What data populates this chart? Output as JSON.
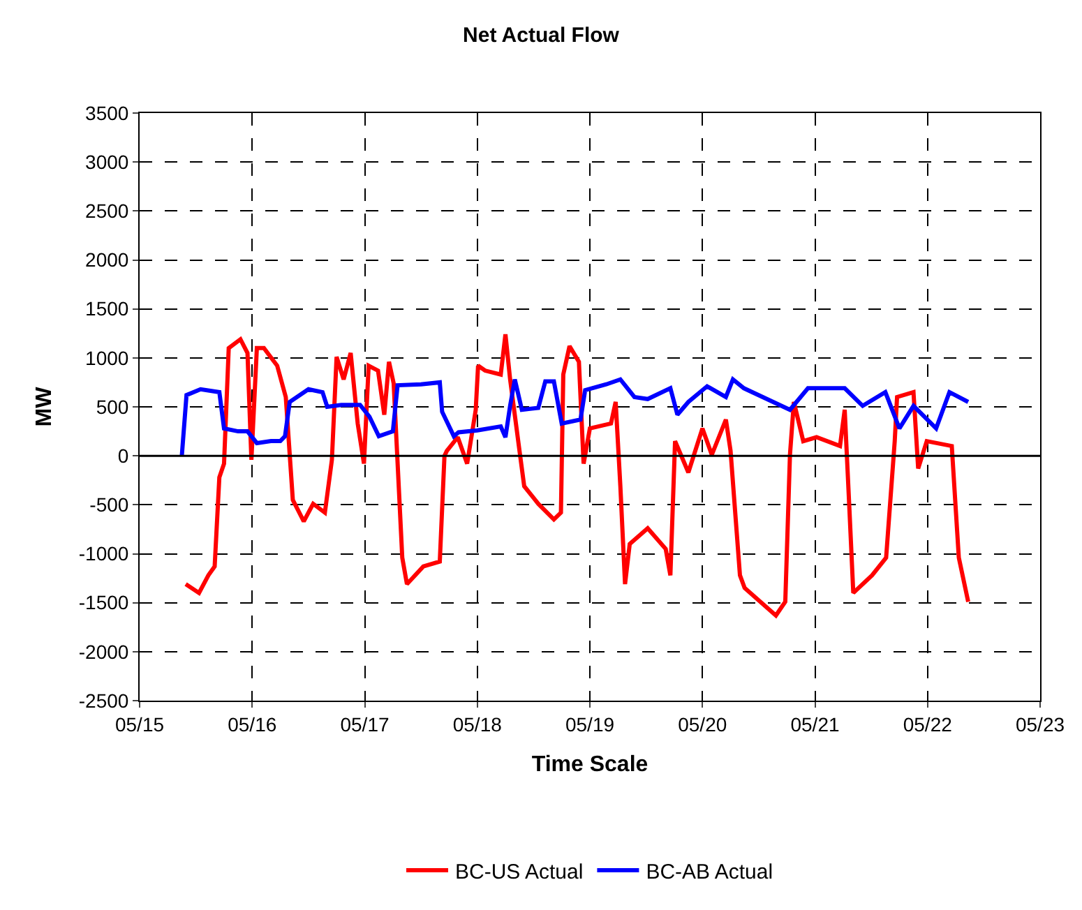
{
  "chart_data": {
    "type": "line",
    "title": "Net Actual Flow",
    "xlabel": "Time Scale",
    "ylabel": "MW",
    "xlim": [
      "--05-15",
      "--05-23"
    ],
    "xticks": [
      {
        "value": "--05-15",
        "label": "05/15"
      },
      {
        "value": "--05-16",
        "label": "05/16"
      },
      {
        "value": "--05-17",
        "label": "05/17"
      },
      {
        "value": "--05-18",
        "label": "05/18"
      },
      {
        "value": "--05-19",
        "label": "05/19"
      },
      {
        "value": "--05-20",
        "label": "05/20"
      },
      {
        "value": "--05-21",
        "label": "05/21"
      },
      {
        "value": "--05-22",
        "label": "05/22"
      },
      {
        "value": "--05-23",
        "label": "05/23"
      }
    ],
    "ylim": [
      -2500,
      3500
    ],
    "yticks": [
      -2500,
      -2000,
      -1500,
      -1000,
      -500,
      0,
      500,
      1000,
      1500,
      2000,
      2500,
      3000,
      3500
    ],
    "grid": true,
    "legend": "bottom",
    "marker": "none",
    "line_style": "solid",
    "ref_lines": [
      {
        "axis": "y",
        "value": 0,
        "color": "#000000",
        "line_style": "solid"
      }
    ],
    "series": [
      {
        "name": "BC-US Actual",
        "color": "#ff0000",
        "x": [
          "--05-15T09:50",
          "--05-15T12:40",
          "--05-15T14:40",
          "--05-15T16:00",
          "--05-15T17:00",
          "--05-15T18:00",
          "--05-15T19:00",
          "--05-15T21:30",
          "--05-15T23:00",
          "--05-15T23:50",
          "--05-16T01:00",
          "--05-16T02:30",
          "--05-16T05:20",
          "--05-16T07:10",
          "--05-16T08:40",
          "--05-16T11:00",
          "--05-16T13:00",
          "--05-16T15:30",
          "--05-16T17:00",
          "--05-16T18:00",
          "--05-16T19:30",
          "--05-16T21:00",
          "--05-16T22:30",
          "--05-16T23:50",
          "--05-17T00:50",
          "--05-17T02:50",
          "--05-17T04:10",
          "--05-17T05:10",
          "--05-17T06:10",
          "--05-17T08:00",
          "--05-17T09:00",
          "--05-17T12:30",
          "--05-17T16:00",
          "--05-17T17:00",
          "--05-17T17:30",
          "--05-17T19:50",
          "--05-17T21:50",
          "--05-17T23:40",
          "--05-18T00:10",
          "--05-18T01:40",
          "--05-18T05:00",
          "--05-18T06:00",
          "--05-18T07:00",
          "--05-18T09:00",
          "--05-18T10:00",
          "--05-18T13:00",
          "--05-18T16:20",
          "--05-18T17:50",
          "--05-18T18:20",
          "--05-18T19:40",
          "--05-18T21:40",
          "--05-18T22:40",
          "--05-19T00:00",
          "--05-19T04:30",
          "--05-19T05:30",
          "--05-19T06:30",
          "--05-19T07:30",
          "--05-19T08:30",
          "--05-19T12:20",
          "--05-19T16:10",
          "--05-19T17:10",
          "--05-19T18:10",
          "--05-19T21:00",
          "--05-20T00:00",
          "--05-20T02:00",
          "--05-20T05:00",
          "--05-20T06:00",
          "--05-20T08:00",
          "--05-20T09:00",
          "--05-20T15:40",
          "--05-20T17:40",
          "--05-20T18:40",
          "--05-20T19:30",
          "--05-20T21:30",
          "--05-21T00:20",
          "--05-21T05:20",
          "--05-21T06:20",
          "--05-21T07:20",
          "--05-21T08:10",
          "--05-21T12:10",
          "--05-21T15:10",
          "--05-21T17:00",
          "--05-21T17:30",
          "--05-21T21:00",
          "--05-21T22:00",
          "--05-21T23:50",
          "--05-22T05:10",
          "--05-22T06:40",
          "--05-22T08:40"
        ],
        "values": [
          -1310,
          -1400,
          -1220,
          -1130,
          -220,
          -80,
          1100,
          1190,
          1050,
          -40,
          1100,
          1100,
          920,
          600,
          -450,
          -670,
          -490,
          -580,
          -40,
          1010,
          780,
          1050,
          330,
          -80,
          920,
          870,
          420,
          960,
          740,
          -1040,
          -1310,
          -1130,
          -1080,
          0,
          50,
          190,
          -80,
          470,
          920,
          870,
          830,
          1240,
          780,
          50,
          -310,
          -490,
          -650,
          -580,
          830,
          1120,
          960,
          -80,
          280,
          330,
          550,
          -310,
          -1310,
          -900,
          -740,
          -950,
          -1220,
          150,
          -170,
          280,
          10,
          370,
          50,
          -1220,
          -1350,
          -1630,
          -1490,
          10,
          550,
          150,
          190,
          100,
          470,
          -540,
          -1400,
          -1220,
          -1040,
          150,
          600,
          650,
          -130,
          150,
          100,
          -1040,
          -1490
        ]
      },
      {
        "name": "BC-AB Actual",
        "color": "#0000ff",
        "x": [
          "--05-15T09:00",
          "--05-15T10:00",
          "--05-15T13:00",
          "--05-15T17:00",
          "--05-15T18:00",
          "--05-15T21:00",
          "--05-15T23:00",
          "--05-16T01:00",
          "--05-16T04:00",
          "--05-16T06:00",
          "--05-16T07:00",
          "--05-16T08:00",
          "--05-16T12:00",
          "--05-16T15:00",
          "--05-16T16:00",
          "--05-16T19:00",
          "--05-16T23:00",
          "--05-17T01:00",
          "--05-17T03:00",
          "--05-17T06:00",
          "--05-17T07:00",
          "--05-17T12:00",
          "--05-17T16:00",
          "--05-17T16:30",
          "--05-17T19:00",
          "--05-17T20:00",
          "--05-18T00:00",
          "--05-18T05:00",
          "--05-18T06:00",
          "--05-18T07:00",
          "--05-18T08:00",
          "--05-18T09:30",
          "--05-18T13:00",
          "--05-18T14:30",
          "--05-18T16:20",
          "--05-18T18:00",
          "--05-18T22:00",
          "--05-18T23:00",
          "--05-19T03:30",
          "--05-19T06:30",
          "--05-19T09:30",
          "--05-19T12:20",
          "--05-19T17:10",
          "--05-19T18:40",
          "--05-19T21:00",
          "--05-20T01:00",
          "--05-20T05:00",
          "--05-20T06:30",
          "--05-20T08:50",
          "--05-20T18:40",
          "--05-20T22:30",
          "--05-21T06:20",
          "--05-21T10:10",
          "--05-21T15:00",
          "--05-21T18:00",
          "--05-21T21:00",
          "--05-22T01:50",
          "--05-22T04:40",
          "--05-22T08:40"
        ],
        "values": [
          0,
          620,
          680,
          650,
          280,
          250,
          250,
          130,
          150,
          150,
          200,
          550,
          680,
          650,
          500,
          520,
          520,
          400,
          200,
          250,
          720,
          730,
          750,
          450,
          200,
          240,
          260,
          300,
          190,
          510,
          780,
          470,
          490,
          760,
          760,
          330,
          370,
          670,
          730,
          780,
          600,
          580,
          690,
          420,
          550,
          710,
          600,
          780,
          690,
          470,
          690,
          690,
          510,
          650,
          280,
          510,
          280,
          650,
          550
        ]
      }
    ]
  }
}
